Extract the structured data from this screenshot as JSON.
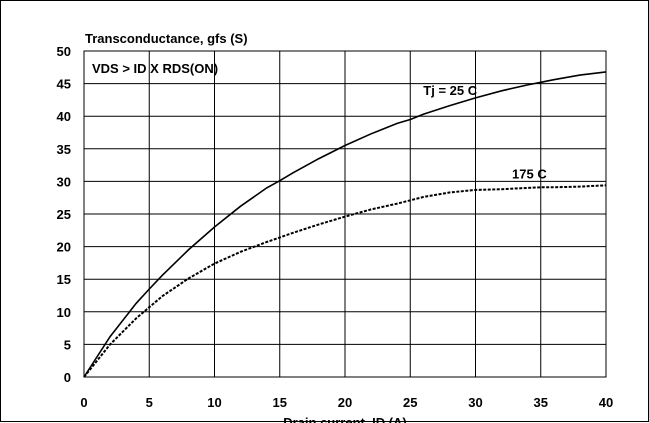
{
  "chart_data": {
    "type": "line",
    "title": "Transconductance, gfs (S)",
    "xlabel": "Drain current, ID (A)",
    "ylabel": "",
    "annotation": "VDS > ID X RDS(ON)",
    "xlim": [
      0,
      40
    ],
    "ylim": [
      0,
      50
    ],
    "x_ticks": [
      0,
      5,
      10,
      15,
      20,
      25,
      30,
      35,
      40
    ],
    "y_ticks": [
      0,
      5,
      10,
      15,
      20,
      25,
      30,
      35,
      40,
      45,
      50
    ],
    "grid": true,
    "series": [
      {
        "name": "Tj = 25 C",
        "style": "solid",
        "color": "#000000",
        "x": [
          0,
          2,
          4,
          5,
          6,
          8,
          10,
          12,
          14,
          15,
          16,
          18,
          20,
          22,
          24,
          25,
          26,
          28,
          30,
          32,
          34,
          35,
          36,
          38,
          40
        ],
        "y": [
          0,
          6.2,
          11.3,
          13.5,
          15.6,
          19.5,
          23.0,
          26.2,
          29.0,
          30.1,
          31.3,
          33.5,
          35.5,
          37.3,
          38.9,
          39.5,
          40.3,
          41.6,
          42.8,
          43.9,
          44.8,
          45.2,
          45.6,
          46.3,
          46.8
        ]
      },
      {
        "name": "175 C",
        "style": "dashed",
        "color": "#000000",
        "x": [
          0,
          2,
          4,
          5,
          6,
          8,
          10,
          12,
          14,
          15,
          16,
          18,
          20,
          22,
          24,
          25,
          26,
          28,
          30,
          32,
          34,
          35,
          36,
          38,
          40
        ],
        "y": [
          0,
          5.0,
          9.0,
          10.7,
          12.4,
          15.1,
          17.4,
          19.2,
          20.7,
          21.4,
          22.1,
          23.4,
          24.6,
          25.7,
          26.6,
          27.1,
          27.6,
          28.3,
          28.7,
          28.8,
          29.0,
          29.1,
          29.1,
          29.2,
          29.4
        ]
      }
    ],
    "series_labels": [
      {
        "text": "Tj = 25 C",
        "x": 26.0,
        "y": 44.0
      },
      {
        "text": "175 C",
        "x": 32.8,
        "y": 31.2
      }
    ]
  }
}
